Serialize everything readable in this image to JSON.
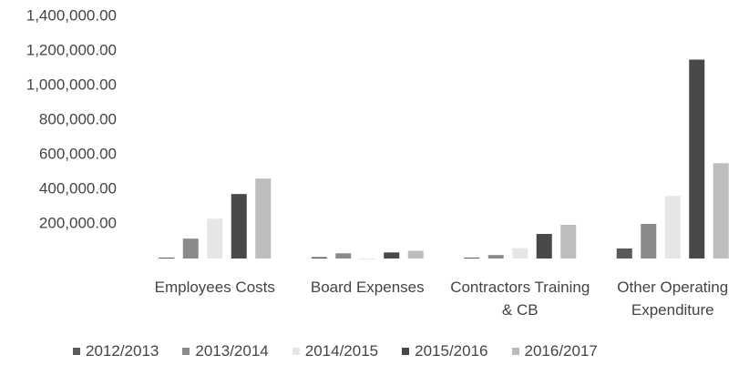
{
  "chart_data": {
    "type": "bar",
    "categories": [
      "Employees Costs",
      "Board Expenses",
      "Contractors Training & CB",
      "Other Operating Expenditure"
    ],
    "series": [
      {
        "name": "2012/2013",
        "color": "#5a5a5a",
        "values": [
          5000,
          8000,
          5000,
          58000
        ]
      },
      {
        "name": "2013/2014",
        "color": "#8a8a8a",
        "values": [
          115000,
          30000,
          20000,
          200000
        ]
      },
      {
        "name": "2014/2015",
        "color": "#e6e6e6",
        "values": [
          230000,
          0,
          60000,
          362000
        ]
      },
      {
        "name": "2015/2016",
        "color": "#484848",
        "values": [
          373000,
          35000,
          142000,
          1150000
        ]
      },
      {
        "name": "2016/2017",
        "color": "#bdbdbd",
        "values": [
          462000,
          45000,
          195000,
          551000
        ]
      }
    ],
    "ylim": [
      0,
      1400000
    ],
    "yticks": [
      {
        "value": 200000,
        "label": "200,000.00"
      },
      {
        "value": 400000,
        "label": "400,000.00"
      },
      {
        "value": 600000,
        "label": "600,000.00"
      },
      {
        "value": 800000,
        "label": "800,000.00"
      },
      {
        "value": 1000000,
        "label": "1,000,000.00"
      },
      {
        "value": 1200000,
        "label": "1,200,000.00"
      },
      {
        "value": 1400000,
        "label": "1,400,000.00"
      }
    ],
    "grid": false
  }
}
